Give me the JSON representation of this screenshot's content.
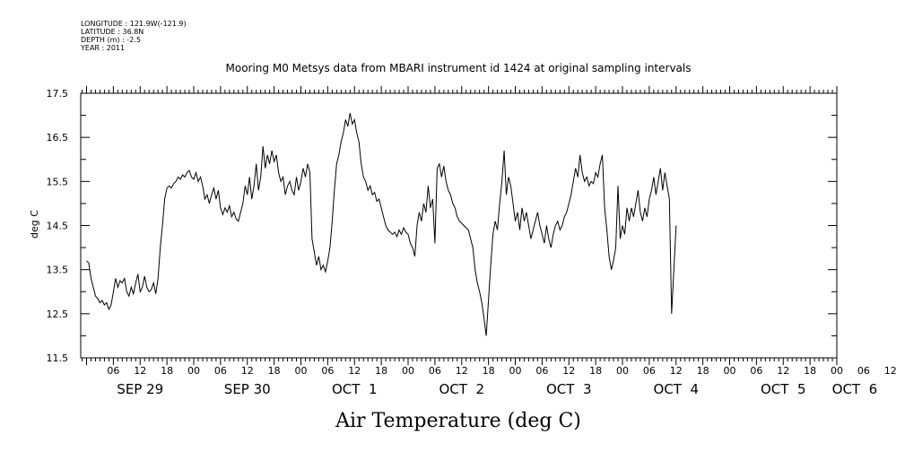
{
  "metadata": [
    "LONGITUDE : 121.9W(-121.9)",
    "LATITUDE : 36.8N",
    "DEPTH (m) : -2.5",
    "YEAR : 2011"
  ],
  "chart_data": {
    "type": "line",
    "title": "Mooring M0 Metsys data from MBARI instrument id 1424 at original sampling intervals",
    "xlabel": "Air Temperature (deg C)",
    "ylabel": "deg C",
    "ylim": [
      11.5,
      17.5
    ],
    "xlim": [
      0,
      192
    ],
    "x_unit": "hours since Sep 29 00:00",
    "yticks": [
      11.5,
      12.5,
      13.5,
      14.5,
      15.5,
      16.5,
      17.5
    ],
    "hour_ticks": [
      {
        "x": 6,
        "label": "06"
      },
      {
        "x": 12,
        "label": "12"
      },
      {
        "x": 18,
        "label": "18"
      },
      {
        "x": 24,
        "label": "00"
      },
      {
        "x": 30,
        "label": "06"
      },
      {
        "x": 36,
        "label": "12"
      },
      {
        "x": 42,
        "label": "18"
      },
      {
        "x": 48,
        "label": "00"
      },
      {
        "x": 54,
        "label": "06"
      },
      {
        "x": 60,
        "label": "12"
      },
      {
        "x": 66,
        "label": "18"
      },
      {
        "x": 72,
        "label": "00"
      },
      {
        "x": 78,
        "label": "06"
      },
      {
        "x": 84,
        "label": "12"
      },
      {
        "x": 90,
        "label": "18"
      },
      {
        "x": 96,
        "label": "00"
      },
      {
        "x": 102,
        "label": "06"
      },
      {
        "x": 108,
        "label": "12"
      },
      {
        "x": 114,
        "label": "18"
      },
      {
        "x": 120,
        "label": "00"
      },
      {
        "x": 126,
        "label": "06"
      },
      {
        "x": 132,
        "label": "12"
      },
      {
        "x": 138,
        "label": "18"
      },
      {
        "x": 144,
        "label": "00"
      },
      {
        "x": 150,
        "label": "06"
      },
      {
        "x": 156,
        "label": "12"
      },
      {
        "x": 162,
        "label": "18"
      },
      {
        "x": 168,
        "label": "00"
      },
      {
        "x": 174,
        "label": "06"
      },
      {
        "x": 180,
        "label": "12"
      },
      {
        "x": 186,
        "label": "18"
      },
      {
        "x": 192,
        "label": "00"
      }
    ],
    "day_labels": [
      {
        "x": 12,
        "label": "SEP 29"
      },
      {
        "x": 36,
        "label": "SEP 30"
      },
      {
        "x": 60,
        "label": "OCT  1"
      },
      {
        "x": 84,
        "label": "OCT  2"
      },
      {
        "x": 108,
        "label": "OCT  3"
      },
      {
        "x": 132,
        "label": "OCT  4"
      },
      {
        "x": 156,
        "label": "OCT  5"
      },
      {
        "x": 172,
        "label": "OCT  6"
      }
    ],
    "series": [
      {
        "values": [
          [
            0.0,
            13.7
          ],
          [
            0.5,
            13.65
          ],
          [
            1.0,
            13.3
          ],
          [
            1.5,
            13.1
          ],
          [
            2.0,
            12.9
          ],
          [
            2.5,
            12.85
          ],
          [
            3.0,
            12.75
          ],
          [
            3.5,
            12.8
          ],
          [
            4.0,
            12.7
          ],
          [
            4.5,
            12.75
          ],
          [
            5.0,
            12.6
          ],
          [
            5.5,
            12.7
          ],
          [
            6.0,
            13.0
          ],
          [
            6.5,
            13.3
          ],
          [
            7.0,
            13.1
          ],
          [
            7.5,
            13.25
          ],
          [
            8.0,
            13.2
          ],
          [
            8.5,
            13.3
          ],
          [
            9.0,
            13.0
          ],
          [
            9.5,
            12.9
          ],
          [
            10.0,
            13.1
          ],
          [
            10.5,
            12.95
          ],
          [
            11.0,
            13.2
          ],
          [
            11.5,
            13.4
          ],
          [
            12.0,
            13.0
          ],
          [
            12.5,
            13.1
          ],
          [
            13.0,
            13.35
          ],
          [
            13.5,
            13.1
          ],
          [
            14.0,
            13.0
          ],
          [
            14.5,
            13.05
          ],
          [
            15.0,
            13.2
          ],
          [
            15.5,
            12.95
          ],
          [
            16.0,
            13.3
          ],
          [
            16.5,
            14.0
          ],
          [
            17.0,
            14.5
          ],
          [
            17.5,
            15.1
          ],
          [
            18.0,
            15.35
          ],
          [
            18.5,
            15.4
          ],
          [
            19.0,
            15.35
          ],
          [
            19.5,
            15.45
          ],
          [
            20.0,
            15.5
          ],
          [
            20.5,
            15.6
          ],
          [
            21.0,
            15.55
          ],
          [
            21.5,
            15.65
          ],
          [
            22.0,
            15.6
          ],
          [
            22.5,
            15.7
          ],
          [
            23.0,
            15.75
          ],
          [
            23.5,
            15.6
          ],
          [
            24.0,
            15.55
          ],
          [
            24.5,
            15.7
          ],
          [
            25.0,
            15.5
          ],
          [
            25.5,
            15.6
          ],
          [
            26.0,
            15.4
          ],
          [
            26.5,
            15.1
          ],
          [
            27.0,
            15.2
          ],
          [
            27.5,
            15.0
          ],
          [
            28.0,
            15.2
          ],
          [
            28.5,
            15.35
          ],
          [
            29.0,
            15.1
          ],
          [
            29.5,
            15.3
          ],
          [
            30.0,
            14.9
          ],
          [
            30.5,
            14.75
          ],
          [
            31.0,
            14.9
          ],
          [
            31.5,
            14.8
          ],
          [
            32.0,
            14.95
          ],
          [
            32.5,
            14.7
          ],
          [
            33.0,
            14.8
          ],
          [
            33.5,
            14.65
          ],
          [
            34.0,
            14.6
          ],
          [
            34.5,
            14.8
          ],
          [
            35.0,
            15.0
          ],
          [
            35.5,
            15.4
          ],
          [
            36.0,
            15.2
          ],
          [
            36.5,
            15.6
          ],
          [
            37.0,
            15.1
          ],
          [
            37.5,
            15.4
          ],
          [
            38.0,
            15.9
          ],
          [
            38.5,
            15.3
          ],
          [
            39.0,
            15.6
          ],
          [
            39.5,
            16.3
          ],
          [
            40.0,
            15.8
          ],
          [
            40.5,
            16.1
          ],
          [
            41.0,
            15.9
          ],
          [
            41.5,
            16.2
          ],
          [
            42.0,
            15.95
          ],
          [
            42.5,
            16.1
          ],
          [
            43.0,
            15.7
          ],
          [
            43.5,
            15.5
          ],
          [
            44.0,
            15.6
          ],
          [
            44.5,
            15.2
          ],
          [
            45.0,
            15.4
          ],
          [
            45.5,
            15.5
          ],
          [
            46.0,
            15.3
          ],
          [
            46.5,
            15.2
          ],
          [
            47.0,
            15.6
          ],
          [
            47.5,
            15.3
          ],
          [
            48.0,
            15.5
          ],
          [
            48.5,
            15.8
          ],
          [
            49.0,
            15.6
          ],
          [
            49.5,
            15.9
          ],
          [
            50.0,
            15.7
          ],
          [
            50.5,
            14.2
          ],
          [
            51.0,
            13.9
          ],
          [
            51.5,
            13.6
          ],
          [
            52.0,
            13.8
          ],
          [
            52.5,
            13.5
          ],
          [
            53.0,
            13.6
          ],
          [
            53.5,
            13.45
          ],
          [
            54.0,
            13.7
          ],
          [
            54.5,
            14.0
          ],
          [
            55.0,
            14.6
          ],
          [
            55.5,
            15.3
          ],
          [
            56.0,
            15.9
          ],
          [
            56.5,
            16.1
          ],
          [
            57.0,
            16.4
          ],
          [
            57.5,
            16.6
          ],
          [
            58.0,
            16.9
          ],
          [
            58.5,
            16.75
          ],
          [
            59.0,
            17.05
          ],
          [
            59.5,
            16.8
          ],
          [
            60.0,
            16.9
          ],
          [
            60.5,
            16.6
          ],
          [
            61.0,
            16.4
          ],
          [
            61.5,
            15.9
          ],
          [
            62.0,
            15.6
          ],
          [
            62.5,
            15.5
          ],
          [
            63.0,
            15.3
          ],
          [
            63.5,
            15.4
          ],
          [
            64.0,
            15.2
          ],
          [
            64.5,
            15.25
          ],
          [
            65.0,
            15.05
          ],
          [
            65.5,
            15.1
          ],
          [
            66.0,
            14.9
          ],
          [
            66.5,
            14.7
          ],
          [
            67.0,
            14.5
          ],
          [
            67.5,
            14.4
          ],
          [
            68.0,
            14.35
          ],
          [
            68.5,
            14.3
          ],
          [
            69.0,
            14.35
          ],
          [
            69.5,
            14.25
          ],
          [
            70.0,
            14.4
          ],
          [
            70.5,
            14.3
          ],
          [
            71.0,
            14.45
          ],
          [
            71.5,
            14.35
          ],
          [
            72.0,
            14.3
          ],
          [
            72.5,
            14.1
          ],
          [
            73.0,
            14.0
          ],
          [
            73.5,
            13.8
          ],
          [
            74.0,
            14.5
          ],
          [
            74.5,
            14.8
          ],
          [
            75.0,
            14.6
          ],
          [
            75.5,
            15.0
          ],
          [
            76.0,
            14.8
          ],
          [
            76.5,
            15.4
          ],
          [
            77.0,
            14.9
          ],
          [
            77.5,
            15.1
          ],
          [
            78.0,
            14.1
          ],
          [
            78.5,
            15.8
          ],
          [
            79.0,
            15.9
          ],
          [
            79.5,
            15.6
          ],
          [
            80.0,
            15.85
          ],
          [
            80.5,
            15.5
          ],
          [
            81.0,
            15.3
          ],
          [
            81.5,
            15.2
          ],
          [
            82.0,
            15.0
          ],
          [
            82.5,
            14.9
          ],
          [
            83.0,
            14.7
          ],
          [
            83.5,
            14.6
          ],
          [
            84.0,
            14.55
          ],
          [
            84.5,
            14.5
          ],
          [
            85.0,
            14.45
          ],
          [
            85.5,
            14.4
          ],
          [
            86.0,
            14.2
          ],
          [
            86.5,
            14.0
          ],
          [
            87.0,
            13.5
          ],
          [
            87.5,
            13.2
          ],
          [
            88.0,
            13.0
          ],
          [
            88.5,
            12.75
          ],
          [
            89.0,
            12.4
          ],
          [
            89.5,
            12.0
          ],
          [
            90.0,
            12.8
          ],
          [
            90.5,
            13.6
          ],
          [
            91.0,
            14.3
          ],
          [
            91.5,
            14.6
          ],
          [
            92.0,
            14.4
          ],
          [
            92.5,
            15.0
          ],
          [
            93.0,
            15.5
          ],
          [
            93.5,
            16.2
          ],
          [
            94.0,
            15.2
          ],
          [
            94.5,
            15.6
          ],
          [
            95.0,
            15.4
          ],
          [
            95.5,
            15.0
          ],
          [
            96.0,
            14.6
          ],
          [
            96.5,
            14.8
          ],
          [
            97.0,
            14.4
          ],
          [
            97.5,
            14.9
          ],
          [
            98.0,
            14.6
          ],
          [
            98.5,
            14.8
          ],
          [
            99.0,
            14.5
          ],
          [
            99.5,
            14.2
          ],
          [
            100.0,
            14.4
          ],
          [
            100.5,
            14.6
          ],
          [
            101.0,
            14.8
          ],
          [
            101.5,
            14.5
          ],
          [
            102.0,
            14.3
          ],
          [
            102.5,
            14.1
          ],
          [
            103.0,
            14.5
          ],
          [
            103.5,
            14.2
          ],
          [
            104.0,
            14.0
          ],
          [
            104.5,
            14.3
          ],
          [
            105.0,
            14.5
          ],
          [
            105.5,
            14.6
          ],
          [
            106.0,
            14.4
          ],
          [
            106.5,
            14.5
          ],
          [
            107.0,
            14.7
          ],
          [
            107.5,
            14.8
          ],
          [
            108.0,
            15.0
          ],
          [
            108.5,
            15.2
          ],
          [
            109.0,
            15.5
          ],
          [
            109.5,
            15.8
          ],
          [
            110.0,
            15.6
          ],
          [
            110.5,
            16.1
          ],
          [
            111.0,
            15.7
          ],
          [
            111.5,
            15.5
          ],
          [
            112.0,
            15.6
          ],
          [
            112.5,
            15.4
          ],
          [
            113.0,
            15.5
          ],
          [
            113.5,
            15.45
          ],
          [
            114.0,
            15.7
          ],
          [
            114.5,
            15.6
          ],
          [
            115.0,
            15.9
          ],
          [
            115.5,
            16.1
          ],
          [
            116.0,
            14.9
          ],
          [
            116.5,
            14.4
          ],
          [
            117.0,
            13.8
          ],
          [
            117.5,
            13.5
          ],
          [
            118.0,
            13.7
          ],
          [
            118.5,
            14.0
          ],
          [
            119.0,
            15.4
          ],
          [
            119.5,
            14.2
          ],
          [
            120.0,
            14.5
          ],
          [
            120.5,
            14.3
          ],
          [
            121.0,
            14.9
          ],
          [
            121.5,
            14.6
          ],
          [
            122.0,
            14.9
          ],
          [
            122.5,
            14.7
          ],
          [
            123.0,
            15.0
          ],
          [
            123.5,
            15.3
          ],
          [
            124.0,
            14.8
          ],
          [
            124.5,
            14.6
          ],
          [
            125.0,
            14.9
          ],
          [
            125.5,
            14.7
          ],
          [
            126.0,
            15.1
          ],
          [
            126.5,
            15.3
          ],
          [
            127.0,
            15.6
          ],
          [
            127.5,
            15.2
          ],
          [
            128.0,
            15.5
          ],
          [
            128.5,
            15.8
          ],
          [
            129.0,
            15.3
          ],
          [
            129.5,
            15.7
          ],
          [
            130.0,
            15.4
          ],
          [
            130.5,
            15.1
          ],
          [
            131.0,
            12.5
          ],
          [
            131.5,
            13.5
          ],
          [
            132.0,
            14.5
          ]
        ]
      }
    ]
  }
}
